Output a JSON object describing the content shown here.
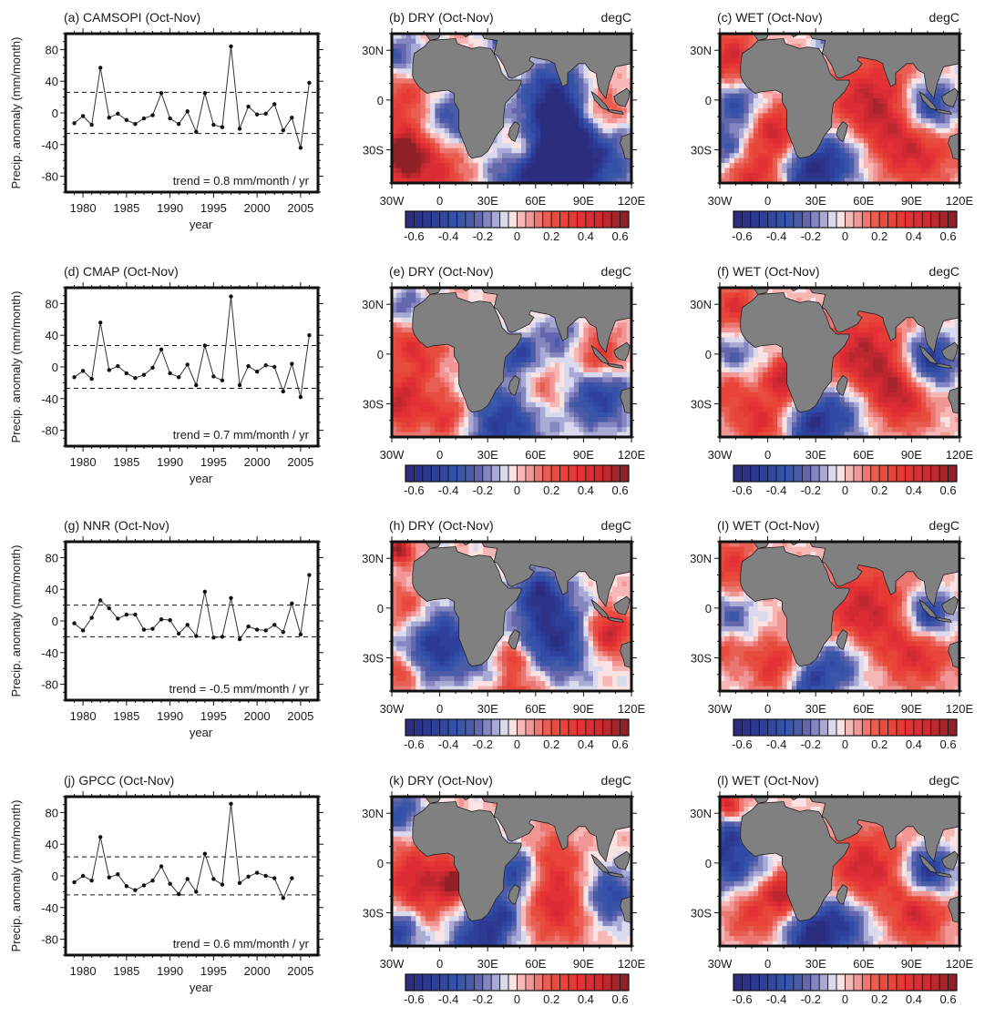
{
  "figure": {
    "colorbar_levels": [
      -0.65,
      -0.6,
      -0.55,
      -0.5,
      -0.45,
      -0.4,
      -0.35,
      -0.3,
      -0.25,
      -0.2,
      -0.15,
      -0.1,
      -0.05,
      0,
      0.05,
      0.1,
      0.15,
      0.2,
      0.25,
      0.3,
      0.35,
      0.4,
      0.45,
      0.5,
      0.55,
      0.6,
      0.65
    ],
    "colorbar_colors": [
      "#2b2e7e",
      "#2c3388",
      "#2d3a93",
      "#2e409c",
      "#3049a5",
      "#3551a9",
      "#3b55a8",
      "#4a5ca8",
      "#6467ae",
      "#8586bf",
      "#a9aad5",
      "#d9daee",
      "#fbe3e3",
      "#f6b8b6",
      "#f19694",
      "#ec7670",
      "#e95e53",
      "#e74c3e",
      "#e8443a",
      "#e53a36",
      "#e23237",
      "#dc2d35",
      "#cf2a32",
      "#bd272e",
      "#a8242b",
      "#8f2026"
    ],
    "colorbar_tick_labels": [
      "-0.6",
      "-0.4",
      "-0.2",
      "0",
      "0.2",
      "0.4",
      "0.6"
    ],
    "colorbar_tick_values": [
      -0.6,
      -0.4,
      -0.2,
      0,
      0.2,
      0.4,
      0.6
    ],
    "map_lon_labels": [
      "30W",
      "0",
      "30E",
      "60E",
      "90E",
      "120E"
    ],
    "map_lat_labels": [
      "30N",
      "0",
      "30S"
    ],
    "land_color": "#808080",
    "unit_label": "degC"
  },
  "chart_data": [
    {
      "type": "line",
      "title": "(a) CAMSOPI (Oct-Nov)",
      "xlabel": "year",
      "ylabel": "Precip. anomaly (mm/month)",
      "xlim": [
        1978,
        2007
      ],
      "ylim": [
        -100,
        100
      ],
      "xticks": [
        1980,
        1985,
        1990,
        1995,
        2000,
        2005
      ],
      "yticks": [
        -80,
        -40,
        0,
        40,
        80
      ],
      "ytick_labels": [
        "-80",
        "-40",
        "0",
        "40",
        "80"
      ],
      "x": [
        1979,
        1980,
        1981,
        1982,
        1983,
        1984,
        1985,
        1986,
        1987,
        1988,
        1989,
        1990,
        1991,
        1992,
        1993,
        1994,
        1995,
        1996,
        1997,
        1998,
        1999,
        2000,
        2001,
        2002,
        2003,
        2004,
        2005,
        2006
      ],
      "values": [
        -13,
        -4,
        -15,
        57,
        -6,
        -1,
        -9,
        -14,
        -7,
        -3,
        25,
        -7,
        -14,
        2,
        -24,
        25,
        -15,
        -18,
        84,
        -20,
        8,
        -2,
        -1,
        11,
        -22,
        -6,
        -44,
        38
      ],
      "threshold": 26,
      "annotation": "trend = 0.8 mm/month / yr"
    },
    {
      "type": "heatmap",
      "title": "(b) DRY (Oct-Nov)",
      "unit": "degC",
      "xlabel_ticks": [
        "30W",
        "0",
        "30E",
        "60E",
        "90E",
        "120E"
      ],
      "ylabel_ticks": [
        "30N",
        "0",
        "30S"
      ],
      "xlim": [
        -30,
        120
      ],
      "ylim": [
        -50,
        40
      ],
      "colorbar_range": [
        -0.65,
        0.65
      ],
      "pattern": "neg-dominant",
      "blobs": [
        [
          -20,
          2,
          0.35,
          14
        ],
        [
          -25,
          -32,
          0.6,
          10
        ],
        [
          -5,
          -40,
          0.45,
          18
        ],
        [
          5,
          -12,
          -0.45,
          14
        ],
        [
          50,
          -28,
          0.4,
          9
        ],
        [
          70,
          5,
          -0.4,
          14
        ],
        [
          90,
          -30,
          -0.55,
          22
        ],
        [
          60,
          -45,
          -0.55,
          20
        ],
        [
          100,
          -8,
          0.55,
          12
        ],
        [
          -25,
          25,
          -0.35,
          10
        ],
        [
          40,
          38,
          -0.55,
          6
        ],
        [
          80,
          -15,
          -0.3,
          15
        ]
      ]
    },
    {
      "type": "heatmap",
      "title": "(c) WET (Oct-Nov)",
      "unit": "degC",
      "xlabel_ticks": [
        "30W",
        "0",
        "30E",
        "60E",
        "90E",
        "120E"
      ],
      "ylabel_ticks": [
        "30N",
        "0",
        "30S"
      ],
      "xlim": [
        -30,
        120
      ],
      "ylim": [
        -50,
        40
      ],
      "colorbar_range": [
        -0.65,
        0.65
      ],
      "pattern": "pos-indian-ocean",
      "blobs": [
        [
          -22,
          25,
          0.45,
          12
        ],
        [
          -20,
          -2,
          -0.4,
          10
        ],
        [
          5,
          -18,
          0.45,
          10
        ],
        [
          65,
          -5,
          0.55,
          22
        ],
        [
          100,
          -5,
          -0.65,
          12
        ],
        [
          95,
          -30,
          0.4,
          16
        ],
        [
          45,
          -32,
          -0.5,
          14
        ],
        [
          25,
          -45,
          -0.5,
          12
        ],
        [
          -25,
          -30,
          -0.4,
          10
        ],
        [
          -10,
          -45,
          0.45,
          14
        ],
        [
          40,
          38,
          -0.45,
          6
        ]
      ]
    },
    {
      "type": "line",
      "title": "(d) CMAP (Oct-Nov)",
      "xlabel": "year",
      "ylabel": "Precip. anomaly (mm/month)",
      "xlim": [
        1978,
        2007
      ],
      "ylim": [
        -100,
        100
      ],
      "xticks": [
        1980,
        1985,
        1990,
        1995,
        2000,
        2005
      ],
      "yticks": [
        -80,
        -40,
        0,
        40,
        80
      ],
      "ytick_labels": [
        "-80",
        "-40",
        "0",
        "40",
        "80"
      ],
      "x": [
        1979,
        1980,
        1981,
        1982,
        1983,
        1984,
        1985,
        1986,
        1987,
        1988,
        1989,
        1990,
        1991,
        1992,
        1993,
        1994,
        1995,
        1996,
        1997,
        1998,
        1999,
        2000,
        2001,
        2002,
        2003,
        2004,
        2005,
        2006
      ],
      "values": [
        -13,
        -5,
        -15,
        56,
        -4,
        1,
        -8,
        -14,
        -10,
        -1,
        22,
        -8,
        -13,
        3,
        -23,
        27,
        -12,
        -17,
        89,
        -23,
        1,
        -6,
        2,
        0,
        -31,
        4,
        -38,
        40
      ],
      "threshold": 27,
      "annotation": "trend = 0.7 mm/month / yr"
    },
    {
      "type": "heatmap",
      "title": "(e) DRY (Oct-Nov)",
      "unit": "degC",
      "xlabel_ticks": [
        "30W",
        "0",
        "30E",
        "60E",
        "90E",
        "120E"
      ],
      "ylabel_ticks": [
        "30N",
        "0",
        "30S"
      ],
      "xlim": [
        -30,
        120
      ],
      "ylim": [
        -50,
        40
      ],
      "colorbar_range": [
        -0.65,
        0.65
      ],
      "pattern": "mixed",
      "blobs": [
        [
          -18,
          0,
          0.4,
          14
        ],
        [
          -25,
          -30,
          0.45,
          12
        ],
        [
          5,
          -38,
          0.4,
          10
        ],
        [
          -20,
          28,
          -0.3,
          8
        ],
        [
          50,
          0,
          -0.45,
          8
        ],
        [
          100,
          -2,
          0.45,
          10
        ],
        [
          100,
          -25,
          -0.5,
          14
        ],
        [
          40,
          -42,
          -0.5,
          18
        ],
        [
          65,
          -22,
          0.25,
          10
        ],
        [
          75,
          10,
          -0.25,
          10
        ],
        [
          -25,
          -8,
          -0.2,
          6
        ]
      ]
    },
    {
      "type": "heatmap",
      "title": "(f) WET (Oct-Nov)",
      "unit": "degC",
      "xlabel_ticks": [
        "30W",
        "0",
        "30E",
        "60E",
        "90E",
        "120E"
      ],
      "ylabel_ticks": [
        "30N",
        "0",
        "30S"
      ],
      "xlim": [
        -30,
        120
      ],
      "ylim": [
        -50,
        40
      ],
      "colorbar_range": [
        -0.65,
        0.65
      ],
      "pattern": "pos-indian-ocean",
      "blobs": [
        [
          -20,
          28,
          0.4,
          10
        ],
        [
          -22,
          -2,
          -0.3,
          10
        ],
        [
          10,
          -15,
          0.55,
          8
        ],
        [
          60,
          -3,
          0.55,
          20
        ],
        [
          85,
          -25,
          0.45,
          14
        ],
        [
          100,
          -5,
          -0.65,
          12
        ],
        [
          45,
          -33,
          -0.5,
          14
        ],
        [
          25,
          -45,
          -0.45,
          10
        ],
        [
          -5,
          -40,
          0.4,
          12
        ],
        [
          -25,
          -20,
          0.3,
          10
        ]
      ]
    },
    {
      "type": "line",
      "title": "(g) NNR (Oct-Nov)",
      "xlabel": "year",
      "ylabel": "Precip. anomaly (mm/month)",
      "xlim": [
        1978,
        2007
      ],
      "ylim": [
        -100,
        100
      ],
      "xticks": [
        1980,
        1985,
        1990,
        1995,
        2000,
        2005
      ],
      "yticks": [
        -80,
        -40,
        0,
        40,
        80
      ],
      "ytick_labels": [
        "-80",
        "-40",
        "0",
        "40",
        "80"
      ],
      "x": [
        1979,
        1980,
        1981,
        1982,
        1983,
        1984,
        1985,
        1986,
        1987,
        1988,
        1989,
        1990,
        1991,
        1992,
        1993,
        1994,
        1995,
        1996,
        1997,
        1998,
        1999,
        2000,
        2001,
        2002,
        2003,
        2004,
        2005,
        2006
      ],
      "values": [
        -3,
        -12,
        4,
        26,
        16,
        3,
        8,
        8,
        -11,
        -10,
        2,
        1,
        -16,
        -5,
        -19,
        37,
        -21,
        -20,
        29,
        -23,
        -7,
        -11,
        -12,
        -5,
        -14,
        22,
        -17,
        58
      ],
      "threshold": 20,
      "annotation": "trend = -0.5 mm/month / yr"
    },
    {
      "type": "heatmap",
      "title": "(h) DRY (Oct-Nov)",
      "unit": "degC",
      "xlabel_ticks": [
        "30W",
        "0",
        "30E",
        "60E",
        "90E",
        "120E"
      ],
      "ylabel_ticks": [
        "30N",
        "0",
        "30S"
      ],
      "xlim": [
        -30,
        120
      ],
      "ylim": [
        -50,
        40
      ],
      "colorbar_range": [
        -0.65,
        0.65
      ],
      "pattern": "neg-south-atlantic-indian",
      "blobs": [
        [
          -25,
          35,
          0.6,
          6
        ],
        [
          0,
          -22,
          -0.55,
          16
        ],
        [
          72,
          -18,
          -0.6,
          18
        ],
        [
          62,
          10,
          -0.45,
          10
        ],
        [
          105,
          -15,
          0.6,
          10
        ],
        [
          40,
          -48,
          0.45,
          18
        ],
        [
          -25,
          -40,
          0.35,
          8
        ],
        [
          -20,
          0,
          0.3,
          10
        ],
        [
          45,
          -30,
          0.35,
          6
        ],
        [
          30,
          -40,
          -0.4,
          12
        ]
      ]
    },
    {
      "type": "heatmap",
      "title": "(I) WET (Oct-Nov)",
      "unit": "degC",
      "xlabel_ticks": [
        "30W",
        "0",
        "30E",
        "60E",
        "90E",
        "120E"
      ],
      "ylabel_ticks": [
        "30N",
        "0",
        "30S"
      ],
      "xlim": [
        -30,
        120
      ],
      "ylim": [
        -50,
        40
      ],
      "colorbar_range": [
        -0.65,
        0.65
      ],
      "pattern": "pos-indian-ocean",
      "blobs": [
        [
          -22,
          25,
          0.35,
          12
        ],
        [
          -22,
          -5,
          -0.3,
          10
        ],
        [
          5,
          -35,
          0.4,
          12
        ],
        [
          60,
          -2,
          0.5,
          20
        ],
        [
          95,
          -28,
          0.4,
          14
        ],
        [
          100,
          -5,
          -0.6,
          10
        ],
        [
          45,
          -32,
          -0.45,
          12
        ],
        [
          25,
          -45,
          -0.45,
          10
        ],
        [
          -25,
          -25,
          0.25,
          8
        ]
      ]
    },
    {
      "type": "line",
      "title": "(j) GPCC (Oct-Nov)",
      "xlabel": "year",
      "ylabel": "Precip. anomaly (mm/month)",
      "xlim": [
        1978,
        2007
      ],
      "ylim": [
        -100,
        100
      ],
      "xticks": [
        1980,
        1985,
        1990,
        1995,
        2000,
        2005
      ],
      "yticks": [
        -80,
        -40,
        0,
        40,
        80
      ],
      "ytick_labels": [
        "-80",
        "-40",
        "0",
        "40",
        "80"
      ],
      "x": [
        1979,
        1980,
        1981,
        1982,
        1983,
        1984,
        1985,
        1986,
        1987,
        1988,
        1989,
        1990,
        1991,
        1992,
        1993,
        1994,
        1995,
        1996,
        1997,
        1998,
        1999,
        2000,
        2001,
        2002,
        2003,
        2004
      ],
      "values": [
        -8,
        0,
        -6,
        49,
        -2,
        2,
        -13,
        -18,
        -12,
        -6,
        12,
        -10,
        -23,
        -4,
        -20,
        28,
        -4,
        -11,
        91,
        -9,
        -1,
        4,
        0,
        -3,
        -28,
        -3
      ],
      "threshold": 24,
      "annotation": "trend = 0.6 mm/month / yr"
    },
    {
      "type": "heatmap",
      "title": "(k) DRY (Oct-Nov)",
      "unit": "degC",
      "xlabel_ticks": [
        "30W",
        "0",
        "30E",
        "60E",
        "90E",
        "120E"
      ],
      "ylabel_ticks": [
        "30N",
        "0",
        "30S"
      ],
      "xlim": [
        -30,
        120
      ],
      "ylim": [
        -50,
        40
      ],
      "colorbar_range": [
        -0.65,
        0.65
      ],
      "pattern": "pos-atlantic",
      "blobs": [
        [
          -12,
          -12,
          0.5,
          18
        ],
        [
          10,
          -12,
          0.6,
          6
        ],
        [
          -25,
          30,
          -0.4,
          10
        ],
        [
          -25,
          -40,
          -0.55,
          10
        ],
        [
          25,
          -45,
          -0.55,
          14
        ],
        [
          48,
          -5,
          -0.5,
          10
        ],
        [
          75,
          -25,
          0.45,
          16
        ],
        [
          70,
          5,
          0.25,
          12
        ],
        [
          105,
          -20,
          -0.5,
          12
        ],
        [
          40,
          -30,
          -0.35,
          8
        ]
      ]
    },
    {
      "type": "heatmap",
      "title": "(l) WET (Oct-Nov)",
      "unit": "degC",
      "xlabel_ticks": [
        "30W",
        "0",
        "30E",
        "60E",
        "90E",
        "120E"
      ],
      "ylabel_ticks": [
        "30N",
        "0",
        "30S"
      ],
      "xlim": [
        -30,
        120
      ],
      "ylim": [
        -50,
        40
      ],
      "colorbar_range": [
        -0.65,
        0.65
      ],
      "pattern": "pos-indian-ocean",
      "blobs": [
        [
          -25,
          35,
          0.5,
          6
        ],
        [
          -22,
          0,
          -0.45,
          14
        ],
        [
          10,
          -18,
          0.55,
          8
        ],
        [
          -10,
          -30,
          0.35,
          12
        ],
        [
          60,
          -5,
          0.5,
          18
        ],
        [
          95,
          -32,
          0.45,
          12
        ],
        [
          100,
          -5,
          -0.6,
          10
        ],
        [
          45,
          -35,
          -0.55,
          14
        ],
        [
          25,
          -45,
          -0.5,
          10
        ],
        [
          -25,
          18,
          -0.3,
          8
        ]
      ]
    }
  ]
}
